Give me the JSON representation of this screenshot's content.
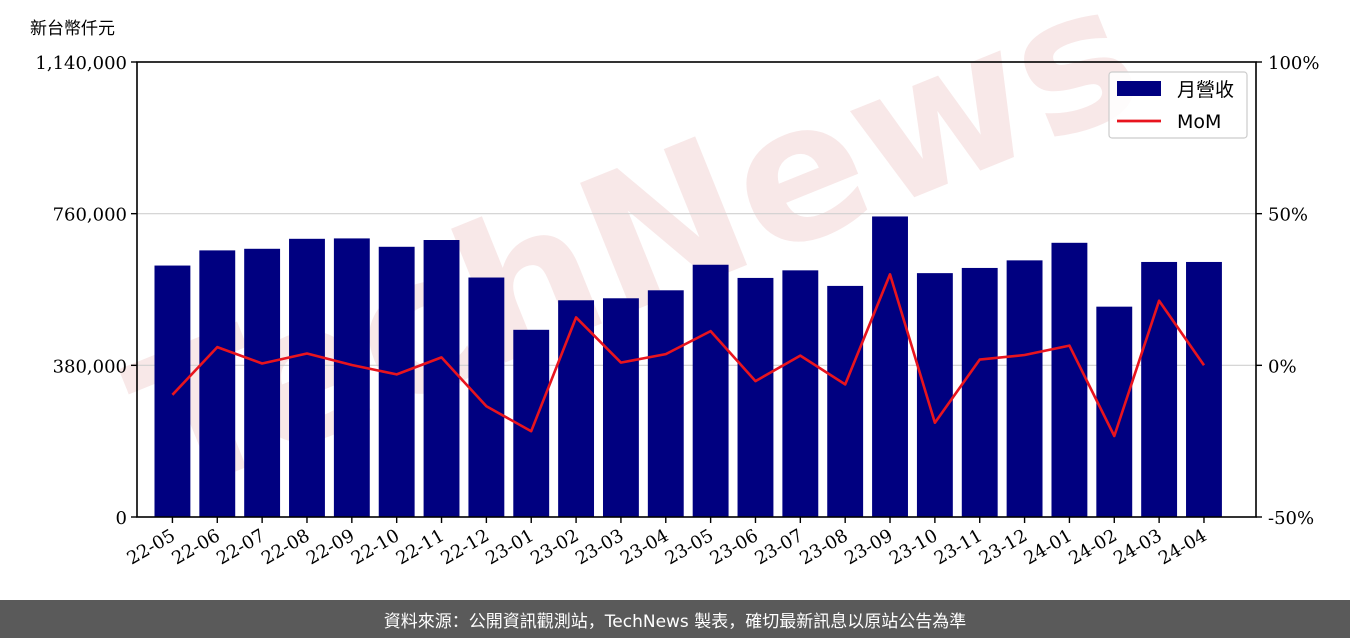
{
  "footer": {
    "text": "資料來源：公開資訊觀測站，TechNews 製表，確切最新訊息以原站公告為準"
  },
  "watermark": {
    "text": "TechNews",
    "color": "#f3d6d6"
  },
  "chart_data": {
    "type": "bar",
    "ylabel": "新台幣仟元",
    "categories": [
      "22-05",
      "22-06",
      "22-07",
      "22-08",
      "22-09",
      "22-10",
      "22-11",
      "22-12",
      "23-01",
      "23-02",
      "23-03",
      "23-04",
      "23-05",
      "23-06",
      "23-07",
      "23-08",
      "23-09",
      "23-10",
      "23-11",
      "23-12",
      "24-01",
      "24-02",
      "24-03",
      "24-04"
    ],
    "series": [
      {
        "name": "月營收",
        "type": "bar",
        "axis": "left",
        "color": "#000080",
        "values": [
          630000,
          668000,
          672000,
          697000,
          698000,
          677000,
          694000,
          600000,
          469000,
          543000,
          548000,
          568000,
          632000,
          599000,
          618000,
          579000,
          753000,
          611000,
          624000,
          643000,
          687000,
          527000,
          639000,
          639000
        ]
      },
      {
        "name": "MoM",
        "type": "line",
        "axis": "right",
        "color": "#e8141e",
        "values": [
          -9.7,
          6.0,
          0.6,
          3.9,
          0.1,
          -3.0,
          2.6,
          -13.5,
          -21.7,
          15.8,
          0.9,
          3.7,
          11.3,
          -5.2,
          3.2,
          -6.3,
          30.0,
          -18.9,
          1.9,
          3.4,
          6.5,
          -23.3,
          21.3,
          0.0
        ]
      }
    ],
    "yticks_left": [
      "0",
      "380,000",
      "760,000",
      "1,140,000"
    ],
    "ylim_left": [
      0,
      1140000
    ],
    "yticks_right": [
      "-50%",
      "0%",
      "50%",
      "100%"
    ],
    "ylim_right": [
      -50,
      100
    ],
    "grid": true,
    "legend": "top-right"
  }
}
